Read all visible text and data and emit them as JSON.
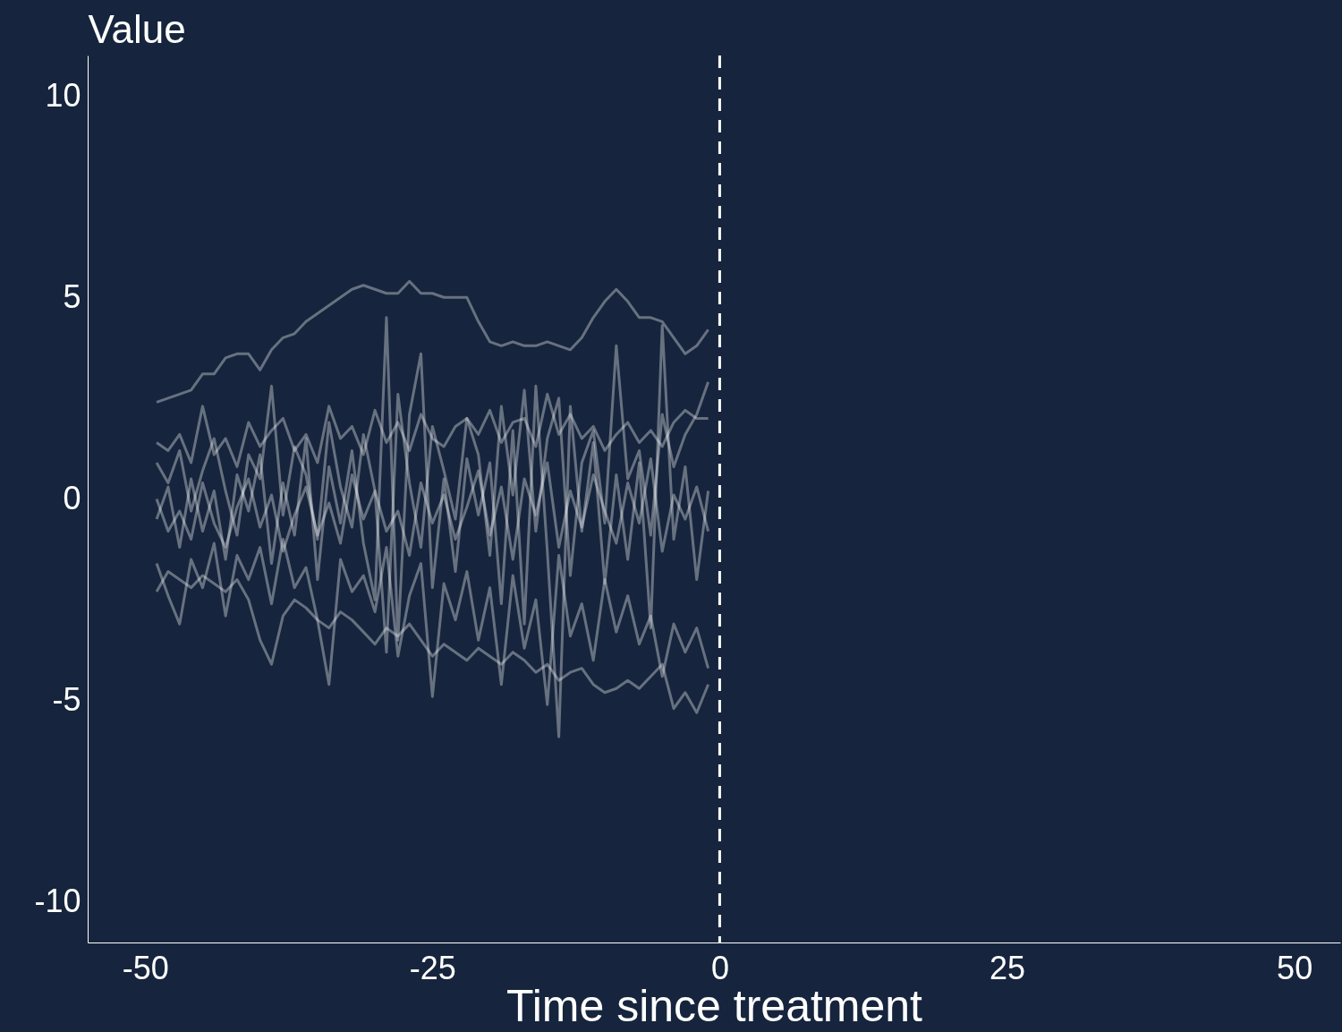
{
  "chart_data": {
    "type": "line",
    "ylabel": "Value",
    "xlabel": "Time since treatment",
    "x": [
      -49,
      -48,
      -47,
      -46,
      -45,
      -44,
      -43,
      -42,
      -41,
      -40,
      -39,
      -38,
      -37,
      -36,
      -35,
      -34,
      -33,
      -32,
      -31,
      -30,
      -29,
      -28,
      -27,
      -26,
      -25,
      -24,
      -23,
      -22,
      -21,
      -20,
      -19,
      -18,
      -17,
      -16,
      -15,
      -14,
      -13,
      -12,
      -11,
      -10,
      -9,
      -8,
      -7,
      -6,
      -5,
      -4,
      -3,
      -2,
      -1
    ],
    "series": [
      {
        "color": "#ffffff",
        "values": [
          2.4,
          2.5,
          2.6,
          2.7,
          3.1,
          3.1,
          3.5,
          3.6,
          3.6,
          3.2,
          3.7,
          4.0,
          4.1,
          4.4,
          4.6,
          4.8,
          5.0,
          5.2,
          5.3,
          5.2,
          5.1,
          5.1,
          5.4,
          5.1,
          5.1,
          5.0,
          5.0,
          5.0,
          4.4,
          3.9,
          3.8,
          3.9,
          3.8,
          3.8,
          3.9,
          3.8,
          3.7,
          4.0,
          4.5,
          4.9,
          5.2,
          4.9,
          4.5,
          4.5,
          4.4,
          4.0,
          3.6,
          3.8,
          4.2
        ]
      },
      {
        "color": "#ffffff",
        "values": [
          -2.3,
          -1.8,
          -2.0,
          -2.2,
          -1.9,
          -2.1,
          -2.3,
          -2.0,
          -2.5,
          -3.5,
          -4.1,
          -2.9,
          -2.5,
          -2.7,
          -3.0,
          -3.2,
          -2.8,
          -3.0,
          -3.3,
          -3.6,
          -3.2,
          -3.4,
          -3.1,
          -3.5,
          -3.9,
          -3.6,
          -3.8,
          -4.0,
          -3.7,
          -3.9,
          -4.1,
          -3.8,
          -4.0,
          -4.3,
          -4.1,
          -4.5,
          -4.3,
          -4.2,
          -4.6,
          -4.8,
          -4.7,
          -4.5,
          -4.7,
          -4.4,
          -4.1,
          -5.2,
          -4.8,
          -5.3,
          -4.6
        ]
      },
      {
        "color": "#ffffff",
        "values": [
          -0.5,
          0.3,
          -1.2,
          0.5,
          -0.8,
          0.2,
          -1.5,
          0.6,
          -0.3,
          1.1,
          -1.6,
          0.4,
          -0.9,
          1.5,
          -2.0,
          0.8,
          -0.6,
          1.2,
          -1.1,
          -2.5,
          4.5,
          -3.5,
          2.1,
          3.6,
          -2.2,
          0.5,
          -1.8,
          1.0,
          -0.4,
          0.9,
          -2.6,
          1.7,
          -3.1,
          2.8,
          -1.3,
          -5.9,
          2.3,
          -0.8,
          1.4,
          -2.1,
          0.6,
          -1.5,
          0.9,
          -3.2,
          4.3,
          -1.0,
          0.8,
          -2.0,
          0.2
        ]
      },
      {
        "color": "#ffffff",
        "values": [
          0.9,
          0.4,
          1.2,
          -0.3,
          0.7,
          1.5,
          0.2,
          -0.9,
          1.1,
          0.5,
          2.8,
          -0.4,
          1.3,
          0.6,
          -1.0,
          1.9,
          0.3,
          -0.7,
          1.6,
          0.2,
          -3.8,
          2.6,
          0.4,
          -1.2,
          1.8,
          0.7,
          -0.5,
          2.0,
          1.1,
          -1.4,
          2.3,
          0.1,
          2.7,
          -0.8,
          1.5,
          2.5,
          -1.9,
          0.9,
          1.7,
          -0.6,
          3.8,
          0.5,
          1.2,
          -0.9,
          2.1,
          0.8,
          1.6,
          2.1,
          2.9
        ]
      },
      {
        "color": "#ffffff",
        "values": [
          -1.6,
          -2.4,
          -3.1,
          -1.5,
          -2.2,
          -1.1,
          -2.9,
          -1.4,
          -2.0,
          -1.2,
          -2.6,
          -1.0,
          -2.2,
          -1.7,
          -3.0,
          -4.6,
          -1.5,
          -2.3,
          -1.9,
          -2.8,
          -1.2,
          -3.9,
          -2.4,
          -1.6,
          -4.9,
          -2.1,
          -3.0,
          -1.8,
          -3.5,
          -2.2,
          -4.6,
          -1.9,
          -3.7,
          -2.5,
          -5.1,
          -1.4,
          -3.4,
          -2.6,
          -4.0,
          -2.0,
          -3.3,
          -2.4,
          -3.6,
          -2.9,
          -4.4,
          -3.1,
          -3.8,
          -3.2,
          -4.2
        ]
      },
      {
        "color": "#ffffff",
        "values": [
          0.0,
          -0.8,
          -0.3,
          -1.0,
          0.4,
          -0.6,
          -1.2,
          -0.2,
          0.5,
          -0.7,
          0.1,
          -1.3,
          -0.4,
          0.3,
          -0.9,
          -0.1,
          -1.1,
          0.6,
          -0.5,
          0.2,
          -0.8,
          -0.3,
          -1.4,
          0.4,
          -0.6,
          0.1,
          -1.0,
          -0.2,
          0.7,
          -0.9,
          0.3,
          -1.5,
          0.5,
          -0.4,
          0.9,
          -1.2,
          0.2,
          -0.7,
          0.6,
          -0.3,
          -1.1,
          0.4,
          -0.6,
          1.0,
          -1.3,
          0.1,
          -0.5,
          0.3,
          -0.8
        ]
      },
      {
        "color": "#ffffff",
        "values": [
          1.4,
          1.2,
          1.6,
          0.9,
          2.3,
          1.1,
          1.5,
          0.8,
          1.9,
          1.3,
          1.7,
          2.0,
          1.2,
          1.6,
          0.9,
          2.3,
          1.5,
          1.8,
          1.1,
          2.2,
          1.4,
          1.9,
          1.2,
          2.1,
          1.5,
          1.3,
          1.8,
          2.0,
          1.6,
          2.2,
          1.4,
          1.9,
          2.0,
          1.3,
          2.6,
          1.6,
          2.1,
          1.5,
          1.8,
          1.2,
          1.6,
          1.9,
          1.4,
          1.7,
          1.3,
          1.9,
          2.2,
          2.0,
          2.0
        ]
      }
    ],
    "xlim": [
      -55,
      54
    ],
    "ylim": [
      -11,
      11
    ],
    "xticks": [
      -50,
      -25,
      0,
      25,
      50
    ],
    "yticks": [
      -10,
      -5,
      0,
      5,
      10
    ],
    "ref_lines": [
      {
        "axis": "x",
        "value": 0,
        "color": "#ffffff",
        "line_style": "dashed"
      }
    ],
    "grid": false
  }
}
